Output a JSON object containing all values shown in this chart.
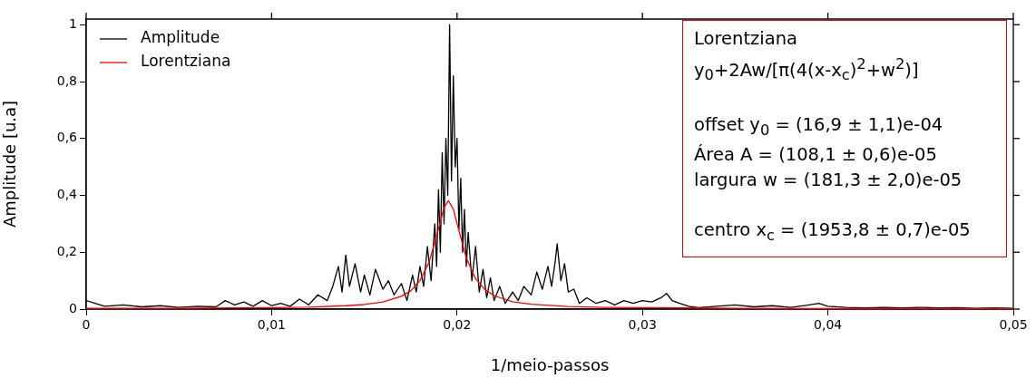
{
  "chart_data": {
    "type": "line",
    "xlabel": "1/meio-passos",
    "ylabel": "Amplitude [u.a]",
    "xlim": [
      0,
      0.05
    ],
    "ylim": [
      0,
      1.02
    ],
    "xticks": [
      0,
      {
        "value": 0.01,
        "label": "0,01"
      },
      {
        "value": 0.02,
        "label": "0,02"
      },
      {
        "value": 0.03,
        "label": "0,03"
      },
      {
        "value": 0.04,
        "label": "0,04"
      },
      {
        "value": 0.05,
        "label": "0,05"
      }
    ],
    "yticks": [
      0,
      {
        "value": 0.2,
        "label": "0,2"
      },
      {
        "value": 0.4,
        "label": "0,4"
      },
      {
        "value": 0.6,
        "label": "0,6"
      },
      {
        "value": 0.8,
        "label": "0,8"
      },
      {
        "value": 1,
        "label": "1"
      }
    ],
    "grid": false,
    "legend": "top left",
    "marker": "none",
    "line_style": "solid",
    "annotations": [
      "Lorentziana\ny$_{0}$+2Aw/[π(4(x-x$_{c}$)$^{2}$+w$^{2}$)]\n\noffset y$_{0}$ = (16,9 ± 1,1)e-04\nÁrea A = (108,1 ± 0,6)e-05\nlargura w = (181,3 ± 2,0)e-05\n\ncentro x$_{c}$ = (1953,8 ± 0,7)e-05"
    ],
    "series": [
      {
        "name": "Amplitude",
        "color": "#000000",
        "x": [
          0,
          0.001,
          0.002,
          0.003,
          0.004,
          0.005,
          0.006,
          0.007,
          0.0075,
          0.008,
          0.0085,
          0.009,
          0.0095,
          0.01,
          0.0105,
          0.011,
          0.0115,
          0.012,
          0.0125,
          0.013,
          0.0133,
          0.0136,
          0.0138,
          0.014,
          0.0142,
          0.0145,
          0.0148,
          0.015,
          0.0153,
          0.0156,
          0.016,
          0.0163,
          0.0166,
          0.017,
          0.0173,
          0.0176,
          0.0178,
          0.018,
          0.0182,
          0.0184,
          0.0186,
          0.0188,
          0.0189,
          0.019,
          0.0191,
          0.0192,
          0.0193,
          0.0194,
          0.0195,
          0.0196,
          0.0197,
          0.0198,
          0.0199,
          0.02,
          0.0201,
          0.0202,
          0.0203,
          0.0204,
          0.0205,
          0.0206,
          0.0208,
          0.021,
          0.0212,
          0.0214,
          0.0216,
          0.0218,
          0.022,
          0.0223,
          0.0226,
          0.023,
          0.0233,
          0.0236,
          0.024,
          0.0243,
          0.0246,
          0.0249,
          0.0251,
          0.0253,
          0.0254,
          0.0256,
          0.0258,
          0.026,
          0.0263,
          0.0266,
          0.027,
          0.0275,
          0.028,
          0.0285,
          0.029,
          0.0295,
          0.03,
          0.0305,
          0.031,
          0.0313,
          0.0316,
          0.032,
          0.0325,
          0.033,
          0.034,
          0.035,
          0.036,
          0.037,
          0.038,
          0.039,
          0.0395,
          0.04,
          0.041,
          0.042,
          0.043,
          0.044,
          0.045,
          0.046,
          0.047,
          0.048,
          0.049,
          0.05
        ],
        "values": [
          0.03,
          0.01,
          0.015,
          0.008,
          0.012,
          0.006,
          0.01,
          0.008,
          0.03,
          0.015,
          0.025,
          0.01,
          0.03,
          0.012,
          0.02,
          0.01,
          0.035,
          0.015,
          0.05,
          0.03,
          0.08,
          0.15,
          0.06,
          0.19,
          0.08,
          0.16,
          0.06,
          0.12,
          0.05,
          0.14,
          0.07,
          0.1,
          0.05,
          0.09,
          0.03,
          0.12,
          0.06,
          0.15,
          0.08,
          0.22,
          0.1,
          0.3,
          0.15,
          0.42,
          0.2,
          0.55,
          0.3,
          0.6,
          0.4,
          1.0,
          0.45,
          0.82,
          0.5,
          0.6,
          0.28,
          0.46,
          0.2,
          0.35,
          0.15,
          0.27,
          0.1,
          0.22,
          0.06,
          0.14,
          0.04,
          0.11,
          0.03,
          0.08,
          0.02,
          0.06,
          0.03,
          0.08,
          0.05,
          0.13,
          0.07,
          0.15,
          0.08,
          0.17,
          0.23,
          0.1,
          0.16,
          0.06,
          0.07,
          0.02,
          0.04,
          0.02,
          0.03,
          0.015,
          0.03,
          0.02,
          0.03,
          0.025,
          0.04,
          0.055,
          0.03,
          0.02,
          0.01,
          0.005,
          0.01,
          0.015,
          0.008,
          0.012,
          0.006,
          0.015,
          0.02,
          0.01,
          0.006,
          0.004,
          0.006,
          0.004,
          0.006,
          0.004,
          0.005,
          0.003,
          0.004,
          0.003
        ]
      },
      {
        "name": "Lorentziana",
        "color": "#ff0000",
        "x": [
          0,
          0.005,
          0.01,
          0.012,
          0.014,
          0.015,
          0.016,
          0.017,
          0.0175,
          0.018,
          0.0185,
          0.019,
          0.0193,
          0.019538,
          0.0198,
          0.0201,
          0.0205,
          0.021,
          0.0215,
          0.022,
          0.023,
          0.024,
          0.026,
          0.028,
          0.03,
          0.035,
          0.04,
          0.045,
          0.05
        ],
        "values": [
          0.003,
          0.003,
          0.005,
          0.007,
          0.012,
          0.016,
          0.025,
          0.045,
          0.064,
          0.1,
          0.166,
          0.282,
          0.357,
          0.381,
          0.352,
          0.276,
          0.18,
          0.107,
          0.069,
          0.047,
          0.026,
          0.017,
          0.009,
          0.006,
          0.005,
          0.003,
          0.002,
          0.002,
          0.002
        ]
      }
    ]
  }
}
